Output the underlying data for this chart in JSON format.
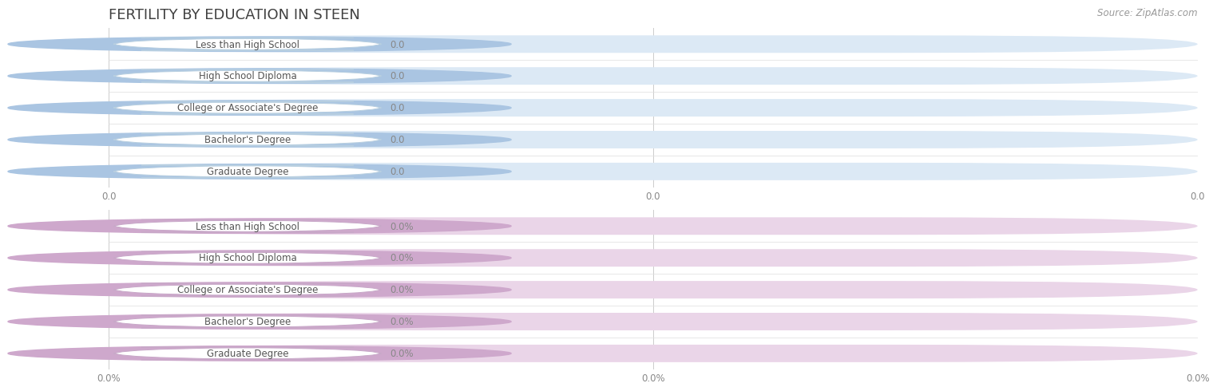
{
  "title": "FERTILITY BY EDUCATION IN STEEN",
  "source_text": "Source: ZipAtlas.com",
  "categories": [
    "Less than High School",
    "High School Diploma",
    "College or Associate's Degree",
    "Bachelor's Degree",
    "Graduate Degree"
  ],
  "group1_values": [
    0.0,
    0.0,
    0.0,
    0.0,
    0.0
  ],
  "group1_labels": [
    "0.0",
    "0.0",
    "0.0",
    "0.0",
    "0.0"
  ],
  "group2_values": [
    0.0,
    0.0,
    0.0,
    0.0,
    0.0
  ],
  "group2_labels": [
    "0.0%",
    "0.0%",
    "0.0%",
    "0.0%",
    "0.0%"
  ],
  "group1_bar_color": "#aac5e2",
  "group1_bar_bg": "#dce9f5",
  "group1_label_border": "#b8cfe0",
  "group2_bar_color": "#cea8cc",
  "group2_bar_bg": "#ead5e8",
  "group2_label_border": "#c8a8c8",
  "background_color": "#ffffff",
  "title_color": "#404040",
  "title_fontsize": 13,
  "label_fontsize": 8.5,
  "tick_fontsize": 8.5,
  "source_fontsize": 8.5,
  "grid_color": "#cccccc",
  "separator_color": "#dddddd",
  "xtick_labels_group1": [
    "0.0",
    "0.0",
    "0.0"
  ],
  "xtick_labels_group2": [
    "0.0%",
    "0.0%",
    "0.0%"
  ]
}
